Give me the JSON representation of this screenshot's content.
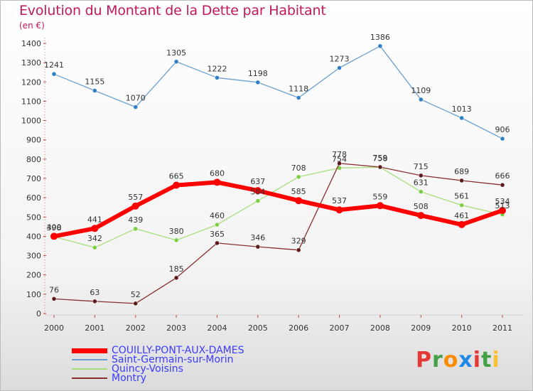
{
  "title": "Evolution du Montant de la Dette par Habitant",
  "subtitle": "(en €)",
  "logo": {
    "text": "Proxiti",
    "letters": [
      {
        "ch": "P",
        "color": "#e53935"
      },
      {
        "ch": "r",
        "color": "#43a047"
      },
      {
        "ch": "o",
        "color": "#fb8c00"
      },
      {
        "ch": "x",
        "color": "#1e88e5"
      },
      {
        "ch": "i",
        "color": "#e53935"
      },
      {
        "ch": "t",
        "color": "#43a047"
      },
      {
        "ch": "i",
        "color": "#fbc02d"
      }
    ]
  },
  "chart_data": {
    "type": "line",
    "title": "Evolution du Montant de la Dette par Habitant",
    "subtitle": "(en €)",
    "x": [
      "2000",
      "2001",
      "2002",
      "2003",
      "2004",
      "2005",
      "2006",
      "2007",
      "2008",
      "2009",
      "2010",
      "2011"
    ],
    "ylim": [
      0,
      1400
    ],
    "yticks": [
      0,
      100,
      200,
      300,
      400,
      500,
      600,
      700,
      800,
      900,
      1000,
      1100,
      1200,
      1300,
      1400
    ],
    "grid": false,
    "legend_position": "bottom-left",
    "series": [
      {
        "name": "COUILLY-PONT-AUX-DAMES",
        "color": "#ff0000",
        "marker": "#ff0000",
        "labelColor": "#333333",
        "width": 6,
        "values": [
          400,
          441,
          557,
          665,
          680,
          637,
          585,
          537,
          559,
          508,
          461,
          534
        ]
      },
      {
        "name": "Saint-Germain-sur-Morin",
        "color": "#6aa0d0",
        "marker": "#2e7fc6",
        "labelColor": "#333333",
        "width": 1.3,
        "values": [
          1241,
          1155,
          1070,
          1305,
          1222,
          1198,
          1118,
          1273,
          1386,
          1109,
          1013,
          906
        ]
      },
      {
        "name": "Quincy-Voisins",
        "color": "#a6df7c",
        "marker": "#7ccf42",
        "labelColor": "#333333",
        "width": 1.3,
        "values": [
          398,
          342,
          439,
          380,
          460,
          584,
          708,
          754,
          758,
          631,
          561,
          513
        ]
      },
      {
        "name": "Montry",
        "color": "#8a3030",
        "marker": "#5e1a1a",
        "labelColor": "#333333",
        "width": 1.3,
        "values": [
          76,
          63,
          52,
          185,
          365,
          346,
          329,
          778,
          759,
          715,
          689,
          666
        ]
      }
    ],
    "legend_label_color": "#3b3bff"
  }
}
